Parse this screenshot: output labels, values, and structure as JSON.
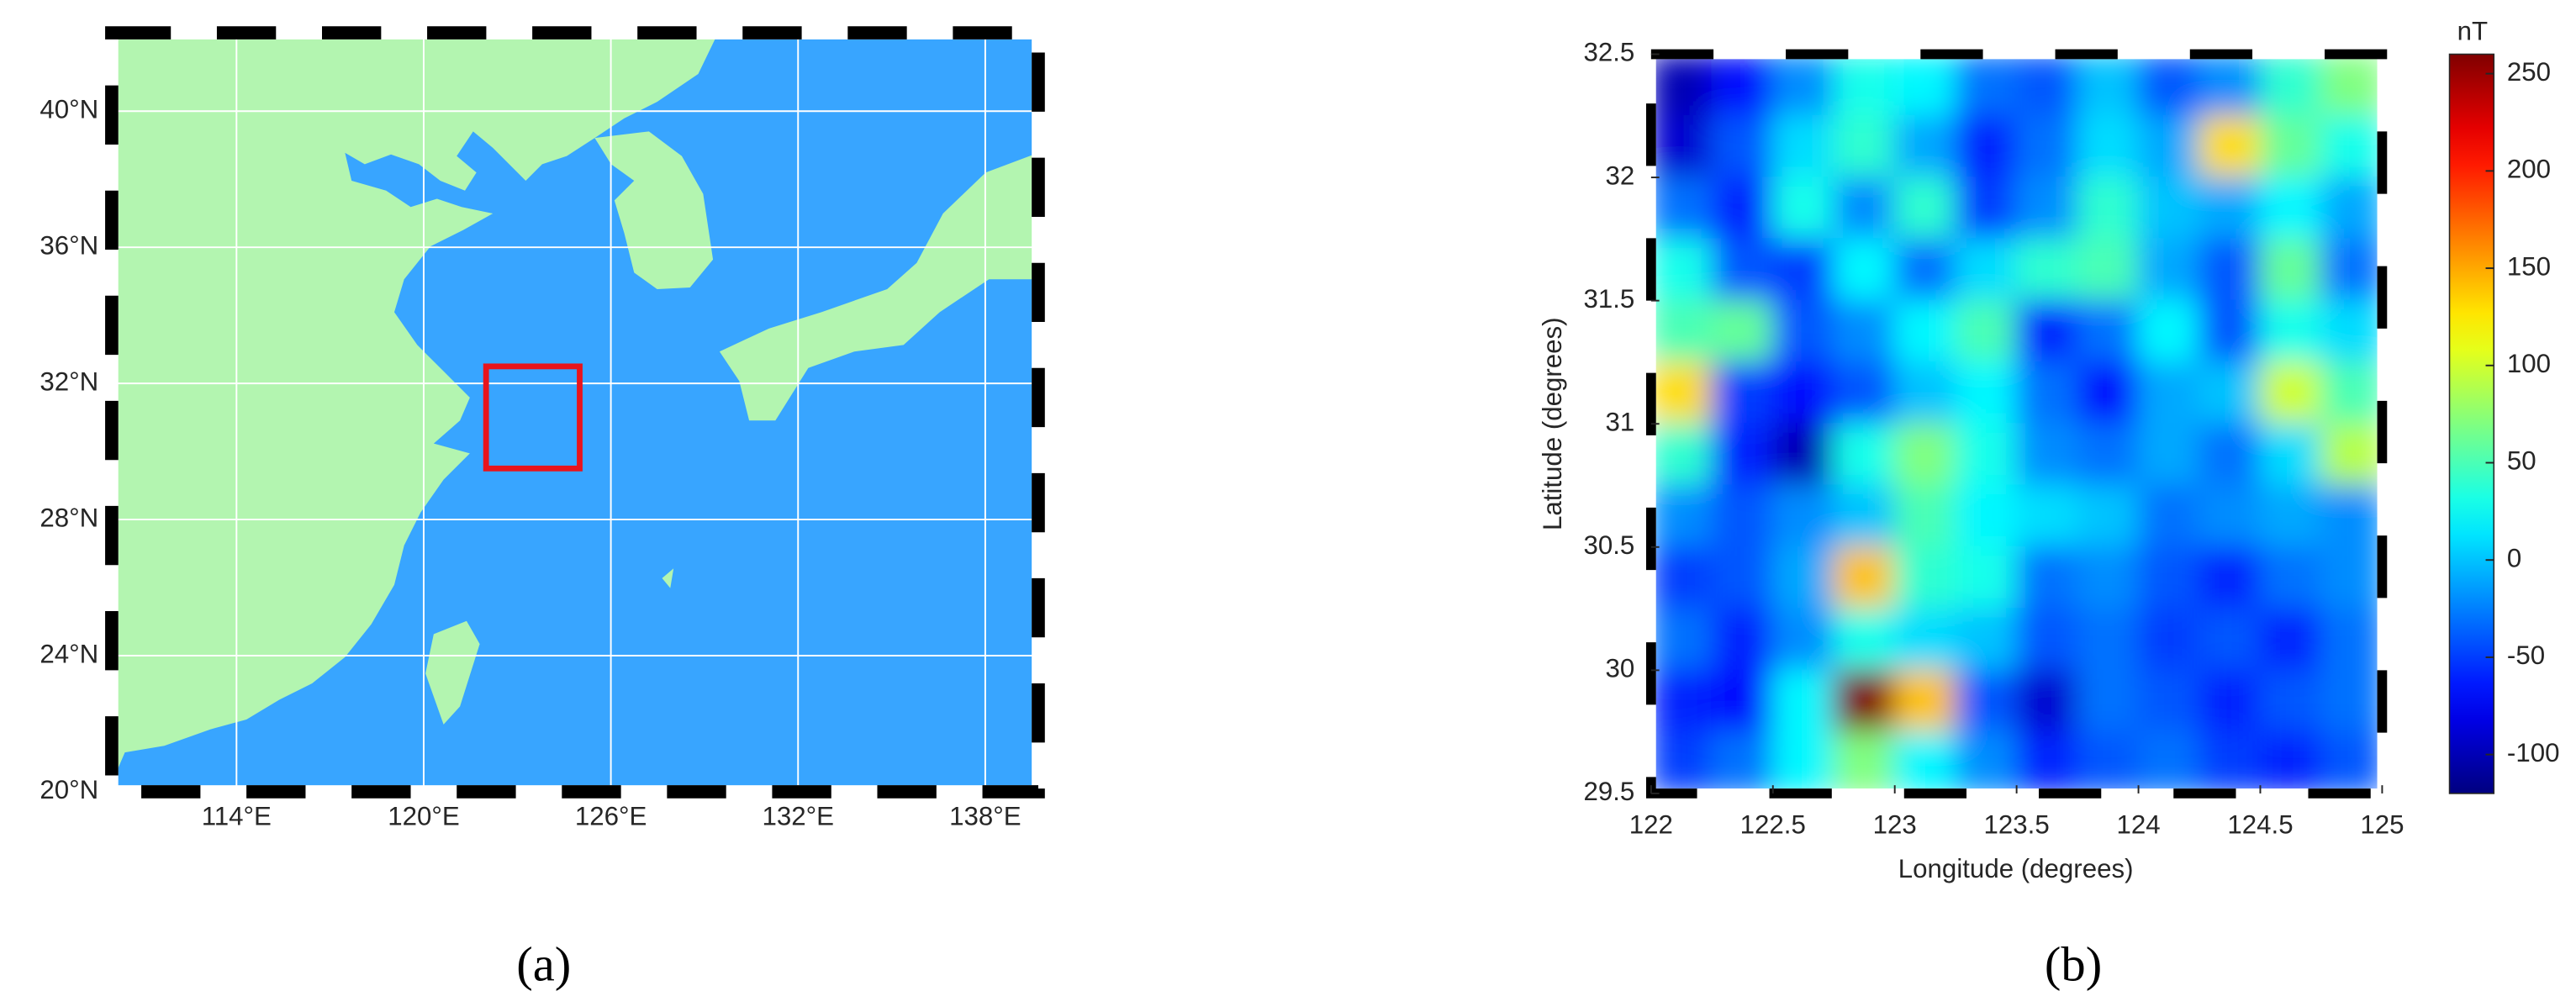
{
  "chart_data": [
    {
      "type": "map",
      "caption": "(a)",
      "xlim": [
        110,
        139.7
      ],
      "ylim": [
        20,
        42.3
      ],
      "xticks": [
        {
          "value": 114,
          "label": "114°E"
        },
        {
          "value": 120,
          "label": "120°E"
        },
        {
          "value": 126,
          "label": "126°E"
        },
        {
          "value": 132,
          "label": "132°E"
        },
        {
          "value": 138,
          "label": "138°E"
        }
      ],
      "yticks": [
        {
          "value": 20,
          "label": "20°N"
        },
        {
          "value": 24,
          "label": "24°N"
        },
        {
          "value": 28,
          "label": "28°N"
        },
        {
          "value": 32,
          "label": "32°N"
        },
        {
          "value": 36,
          "label": "36°N"
        },
        {
          "value": 40,
          "label": "40°N"
        }
      ],
      "grid": true,
      "ocean_color": "#38a5ff",
      "land_color": "#b3f5b0",
      "region": {
        "lon": [
          122,
          125
        ],
        "lat": [
          29.5,
          32.5
        ],
        "color": "#e8141c"
      }
    },
    {
      "type": "heatmap",
      "caption": "(b)",
      "xlabel": "Longitude (degrees)",
      "ylabel": "Latitude (degrees)",
      "xlim": [
        122,
        125
      ],
      "ylim": [
        29.5,
        32.5
      ],
      "xticks": [
        122,
        122.5,
        123,
        123.5,
        124,
        124.5,
        125
      ],
      "yticks": [
        29.5,
        30,
        30.5,
        31,
        31.5,
        32,
        32.5
      ],
      "colormap": "jet",
      "z": [
        [
          -100,
          -70,
          -20,
          30,
          20,
          -30,
          -40,
          0,
          -40,
          -20,
          40,
          70
        ],
        [
          -90,
          -40,
          10,
          40,
          -10,
          -60,
          -30,
          10,
          -10,
          130,
          60,
          30
        ],
        [
          -30,
          -60,
          30,
          -20,
          40,
          -50,
          -20,
          40,
          0,
          -10,
          20,
          -10
        ],
        [
          30,
          -40,
          -50,
          20,
          -30,
          10,
          40,
          50,
          -10,
          -40,
          60,
          -30
        ],
        [
          50,
          60,
          -40,
          -20,
          20,
          50,
          -60,
          -30,
          20,
          -40,
          30,
          10
        ],
        [
          130,
          -50,
          -70,
          -40,
          0,
          20,
          -30,
          -70,
          -10,
          0,
          100,
          50
        ],
        [
          40,
          -60,
          -100,
          30,
          70,
          30,
          -20,
          -30,
          -10,
          -30,
          10,
          90
        ],
        [
          -20,
          -40,
          -20,
          0,
          50,
          20,
          10,
          0,
          -30,
          -20,
          -10,
          -20
        ],
        [
          -50,
          -40,
          -10,
          140,
          40,
          30,
          -30,
          -20,
          -40,
          -60,
          -30,
          -20
        ],
        [
          -30,
          -60,
          -20,
          30,
          10,
          0,
          -40,
          -30,
          -50,
          -40,
          -60,
          -30
        ],
        [
          -60,
          -70,
          20,
          260,
          140,
          -40,
          -90,
          -30,
          -40,
          -60,
          -40,
          -30
        ],
        [
          -50,
          -30,
          20,
          70,
          20,
          -20,
          -60,
          -40,
          -30,
          -50,
          -60,
          -40
        ]
      ],
      "colorbar": {
        "label": "nT",
        "clim": [
          -120,
          260
        ],
        "ticks": [
          -100,
          -50,
          0,
          50,
          100,
          150,
          200,
          250
        ]
      }
    }
  ]
}
